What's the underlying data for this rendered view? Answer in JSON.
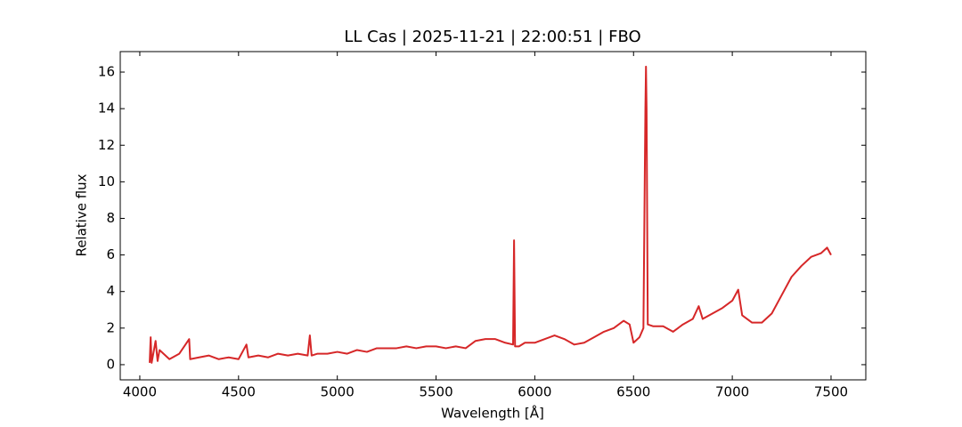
{
  "chart_data": {
    "type": "line",
    "title": "LL Cas | 2025-11-21 | 22:00:51 | FBO",
    "xlabel": "Wavelength [Å]",
    "ylabel": "Relative flux",
    "x": [
      4050,
      4055,
      4060,
      4080,
      4090,
      4100,
      4150,
      4200,
      4250,
      4255,
      4300,
      4350,
      4400,
      4450,
      4500,
      4540,
      4550,
      4600,
      4650,
      4700,
      4750,
      4800,
      4850,
      4861,
      4870,
      4900,
      4950,
      5000,
      5050,
      5100,
      5150,
      5200,
      5250,
      5300,
      5350,
      5400,
      5450,
      5500,
      5550,
      5600,
      5650,
      5700,
      5750,
      5800,
      5850,
      5890,
      5895,
      5900,
      5920,
      5950,
      6000,
      6050,
      6100,
      6150,
      6200,
      6250,
      6300,
      6350,
      6400,
      6450,
      6480,
      6500,
      6530,
      6550,
      6560,
      6563,
      6566,
      6572,
      6600,
      6650,
      6700,
      6750,
      6800,
      6830,
      6850,
      6900,
      6950,
      7000,
      7030,
      7050,
      7100,
      7150,
      7200,
      7250,
      7300,
      7350,
      7400,
      7450,
      7480,
      7500
    ],
    "series": [
      {
        "name": "LL Cas",
        "color": "#d62728",
        "values": [
          0.1,
          1.5,
          0.1,
          1.3,
          0.2,
          0.8,
          0.3,
          0.6,
          1.4,
          0.3,
          0.4,
          0.5,
          0.3,
          0.4,
          0.3,
          1.1,
          0.4,
          0.5,
          0.4,
          0.6,
          0.5,
          0.6,
          0.5,
          1.6,
          0.5,
          0.6,
          0.6,
          0.7,
          0.6,
          0.8,
          0.7,
          0.9,
          0.9,
          0.9,
          1.0,
          0.9,
          1.0,
          1.0,
          0.9,
          1.0,
          0.9,
          1.3,
          1.4,
          1.4,
          1.2,
          1.1,
          6.8,
          1.0,
          1.0,
          1.2,
          1.2,
          1.4,
          1.6,
          1.4,
          1.1,
          1.2,
          1.5,
          1.8,
          2.0,
          2.4,
          2.2,
          1.2,
          1.5,
          2.0,
          14,
          16.3,
          14,
          2.2,
          2.1,
          2.1,
          1.8,
          2.2,
          2.5,
          3.2,
          2.5,
          2.8,
          3.1,
          3.5,
          4.1,
          2.7,
          2.3,
          2.3,
          2.8,
          3.8,
          4.8,
          5.4,
          5.9,
          6.1,
          6.4,
          6.0
        ]
      }
    ],
    "xlim": [
      3901,
      7676
    ],
    "xticks": [
      4000,
      4500,
      5000,
      5500,
      6000,
      6500,
      7000,
      7500
    ],
    "ylim": [
      -0.83,
      17.12
    ],
    "yticks": [
      0,
      2,
      4,
      6,
      8,
      10,
      12,
      14,
      16
    ]
  }
}
